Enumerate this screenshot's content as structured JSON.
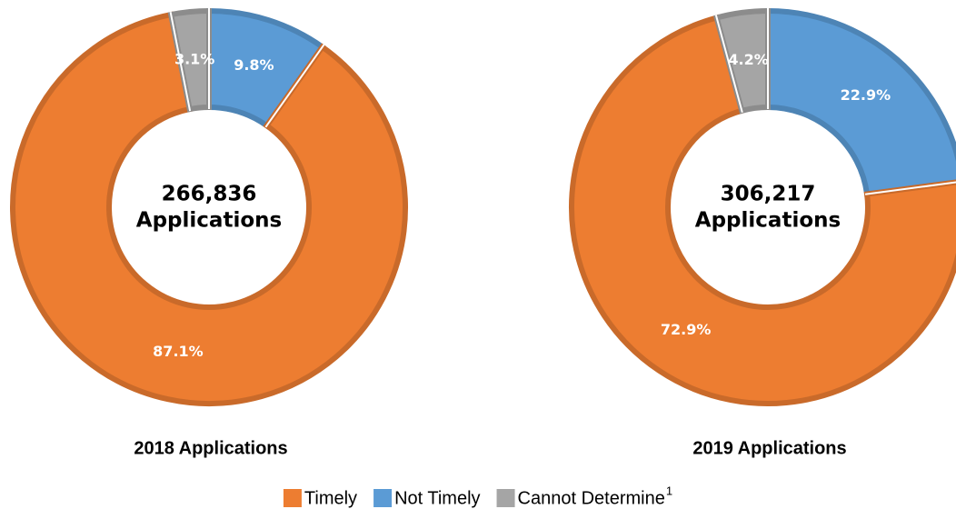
{
  "chart_data": [
    {
      "type": "donut",
      "title": "2018 Applications",
      "center_lines": [
        "266,836",
        "Applications"
      ],
      "categories": [
        "Not Timely",
        "Timely",
        "Cannot Determine"
      ],
      "values": [
        9.8,
        87.1,
        3.1
      ],
      "value_labels": [
        "9.8%",
        "87.1%",
        "3.1%"
      ],
      "colors": [
        "#5B9BD5",
        "#ED7D31",
        "#A5A5A5"
      ],
      "legend_superscript": "1"
    },
    {
      "type": "donut",
      "title": "2019 Applications",
      "center_lines": [
        "306,217",
        "Applications"
      ],
      "categories": [
        "Not Timely",
        "Timely",
        "Cannot Determine"
      ],
      "values": [
        22.9,
        72.9,
        4.2
      ],
      "value_labels": [
        "22.9%",
        "72.9%",
        "4.2%"
      ],
      "colors": [
        "#5B9BD5",
        "#ED7D31",
        "#A5A5A5"
      ]
    }
  ]
}
